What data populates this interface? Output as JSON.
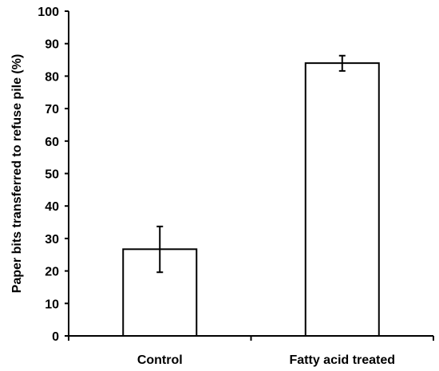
{
  "chart_data": {
    "type": "bar",
    "categories": [
      "Control",
      "Fatty acid treated"
    ],
    "values": [
      26.7,
      84.0
    ],
    "error_bars": [
      {
        "low": 19.6,
        "high": 33.7
      },
      {
        "low": 81.6,
        "high": 86.3
      }
    ],
    "title": "",
    "xlabel": "",
    "ylabel": "Paper bits transferred to refuse pile (%)",
    "ylim": [
      0,
      100
    ],
    "yticks": [
      0,
      10,
      20,
      30,
      40,
      50,
      60,
      70,
      80,
      90,
      100
    ],
    "ytick_labels": [
      "0",
      "10",
      "20",
      "30",
      "40",
      "50",
      "60",
      "70",
      "80",
      "90",
      "100"
    ],
    "grid": false,
    "legend": "none",
    "bar_fill": "#ffffff",
    "bar_edge": "#000000"
  }
}
